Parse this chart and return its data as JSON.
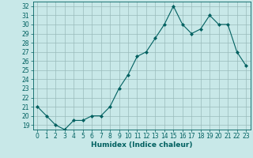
{
  "x": [
    0,
    1,
    2,
    3,
    4,
    5,
    6,
    7,
    8,
    9,
    10,
    11,
    12,
    13,
    14,
    15,
    16,
    17,
    18,
    19,
    20,
    21,
    22,
    23
  ],
  "y": [
    21,
    20,
    19,
    18.5,
    19.5,
    19.5,
    20,
    20,
    21,
    23,
    24.5,
    26.5,
    27,
    28.5,
    30,
    32,
    30,
    29,
    29.5,
    31,
    30,
    30,
    27,
    25.5
  ],
  "xlabel": "Humidex (Indice chaleur)",
  "ylim": [
    18.5,
    32.5
  ],
  "xlim": [
    -0.5,
    23.5
  ],
  "yticks": [
    19,
    20,
    21,
    22,
    23,
    24,
    25,
    26,
    27,
    28,
    29,
    30,
    31,
    32
  ],
  "xticks": [
    0,
    1,
    2,
    3,
    4,
    5,
    6,
    7,
    8,
    9,
    10,
    11,
    12,
    13,
    14,
    15,
    16,
    17,
    18,
    19,
    20,
    21,
    22,
    23
  ],
  "line_color": "#006060",
  "bg_color": "#c8e8e8",
  "grid_color": "#99bbbb",
  "tick_fontsize": 5.5,
  "label_fontsize": 6.5
}
